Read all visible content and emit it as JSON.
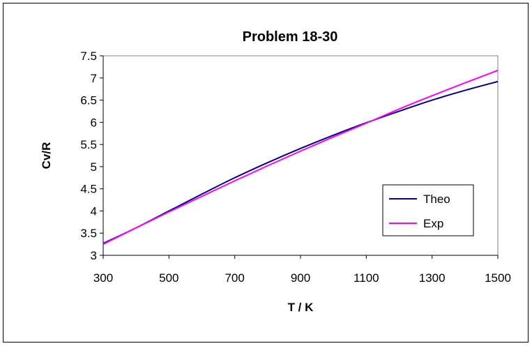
{
  "chart_data": {
    "type": "line",
    "title": "Problem 18-30",
    "xlabel": "T / K",
    "ylabel": "Cv/R",
    "xlim": [
      300,
      1500
    ],
    "ylim": [
      3,
      7.5
    ],
    "xticks": [
      300,
      500,
      700,
      900,
      1100,
      1300,
      1500
    ],
    "yticks": [
      3,
      3.5,
      4,
      4.5,
      5,
      5.5,
      6,
      6.5,
      7,
      7.5
    ],
    "ytick_labels": [
      "3",
      "3.5",
      "4",
      "4.5",
      "5",
      "5.5",
      "6",
      "6.5",
      "7",
      "7.5"
    ],
    "grid": false,
    "legend_position": "bottom-right",
    "series": [
      {
        "name": "Theo",
        "color": "#000080",
        "x": [
          300,
          400,
          500,
          600,
          700,
          800,
          900,
          1000,
          1100,
          1200,
          1300,
          1400,
          1500
        ],
        "y": [
          3.27,
          3.62,
          4.0,
          4.38,
          4.75,
          5.09,
          5.41,
          5.71,
          5.99,
          6.25,
          6.5,
          6.72,
          6.92
        ]
      },
      {
        "name": "Exp",
        "color": "#ff00ff",
        "x": [
          300,
          400,
          500,
          600,
          700,
          800,
          900,
          1000,
          1100,
          1200,
          1300,
          1400,
          1500
        ],
        "y": [
          3.25,
          3.62,
          3.98,
          4.33,
          4.68,
          5.02,
          5.35,
          5.67,
          5.98,
          6.3,
          6.6,
          6.89,
          7.17
        ]
      }
    ]
  }
}
